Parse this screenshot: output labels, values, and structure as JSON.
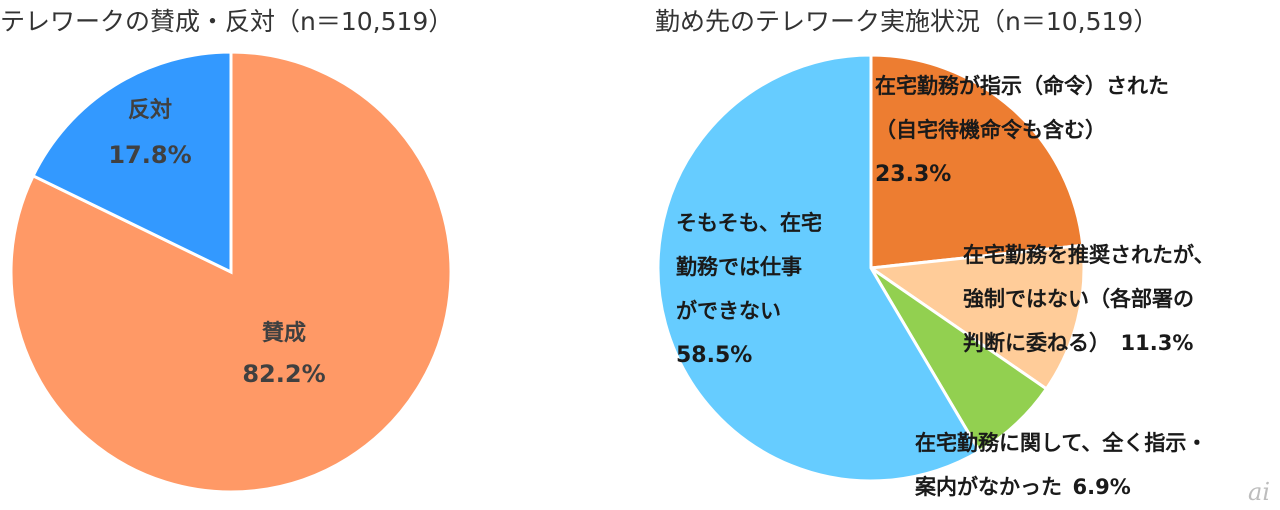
{
  "watermark": "ai",
  "chart_data": [
    {
      "type": "pie",
      "title": "テレワークの賛成・反対（n＝10,519）",
      "slices": [
        {
          "lines": [
            "賛成"
          ],
          "value_label": "82.2%",
          "value": 82.2,
          "color": "#FF9966"
        },
        {
          "lines": [
            "反対"
          ],
          "value_label": "17.8%",
          "value": 17.8,
          "color": "#3399FF"
        }
      ]
    },
    {
      "type": "pie",
      "title": "勤め先のテレワーク実施状況（n＝10,519）",
      "slices": [
        {
          "lines": [
            "在宅勤務が指示（命令）された",
            "（自宅待機命令も含む）"
          ],
          "value_label": "23.3%",
          "value": 23.3,
          "color": "#ED7D31"
        },
        {
          "lines": [
            "在宅勤務を推奨されたが、",
            "強制ではない（各部署の",
            "判断に委ねる）"
          ],
          "value_label": "11.3%",
          "value": 11.3,
          "color": "#FFCC99"
        },
        {
          "lines": [
            "在宅勤務に関して、全く指示・",
            "案内がなかった"
          ],
          "value_label": "6.9%",
          "value": 6.9,
          "color": "#92D050"
        },
        {
          "lines": [
            "そもそも、在宅",
            "勤務では仕事",
            "ができない"
          ],
          "value_label": "58.5%",
          "value": 58.5,
          "color": "#66CCFF"
        }
      ]
    }
  ]
}
